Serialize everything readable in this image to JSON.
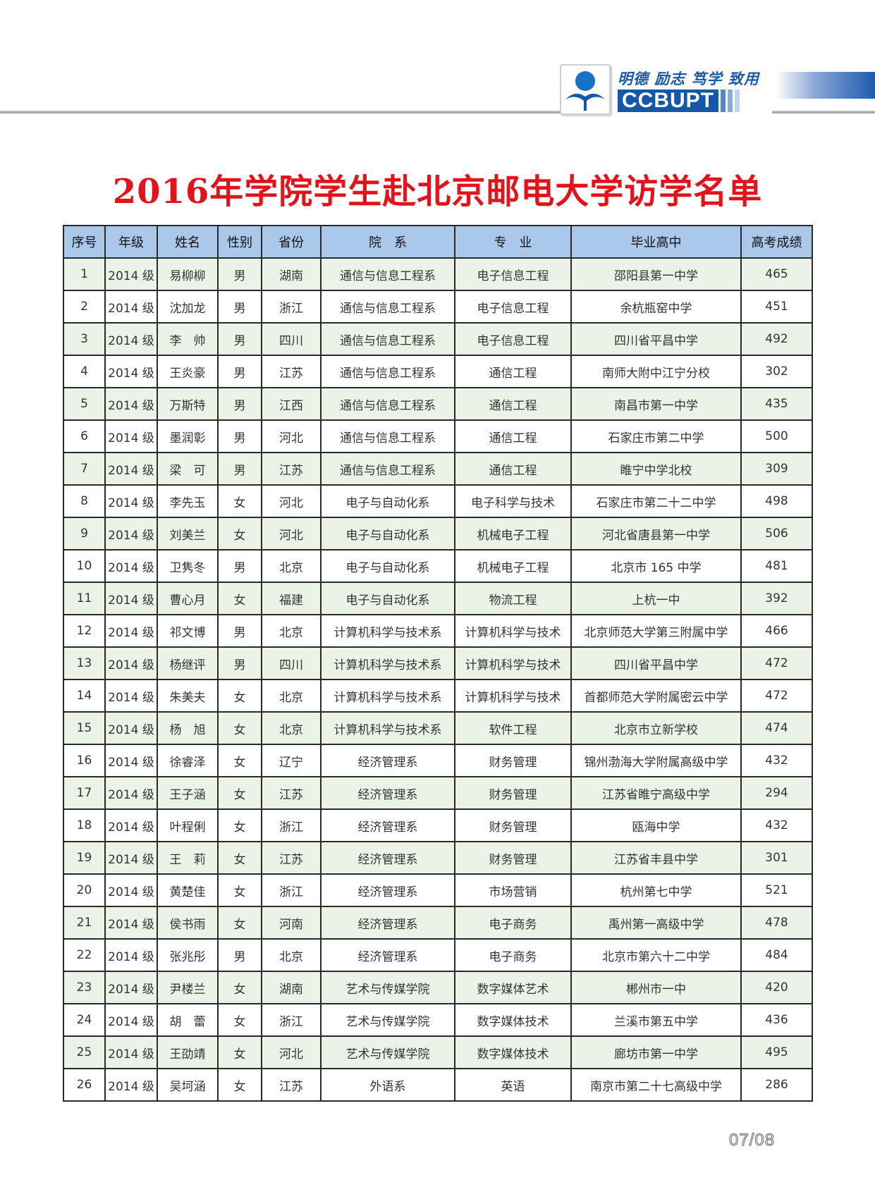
{
  "header": {
    "slogan": "明德 励志 笃学 致用",
    "brand": "CCBUPT",
    "colors": {
      "brand_blue": "#1257a8",
      "title_red": "#e3131b",
      "header_row": "#a9c8ea",
      "stripe_row": "#ebf3e7"
    }
  },
  "title": "2016年学院学生赴北京邮电大学访学名单",
  "table": {
    "columns": [
      "序号",
      "年级",
      "姓名",
      "性别",
      "省份",
      "院　系",
      "专　业",
      "毕业高中",
      "高考成绩"
    ],
    "rows": [
      [
        "1",
        "2014 级",
        "易柳柳",
        "男",
        "湖南",
        "通信与信息工程系",
        "电子信息工程",
        "邵阳县第一中学",
        "465"
      ],
      [
        "2",
        "2014 级",
        "沈加龙",
        "男",
        "浙江",
        "通信与信息工程系",
        "电子信息工程",
        "余杭瓶窑中学",
        "451"
      ],
      [
        "3",
        "2014 级",
        "李　帅",
        "男",
        "四川",
        "通信与信息工程系",
        "电子信息工程",
        "四川省平昌中学",
        "492"
      ],
      [
        "4",
        "2014 级",
        "王炎豪",
        "男",
        "江苏",
        "通信与信息工程系",
        "通信工程",
        "南师大附中江宁分校",
        "302"
      ],
      [
        "5",
        "2014 级",
        "万斯特",
        "男",
        "江西",
        "通信与信息工程系",
        "通信工程",
        "南昌市第一中学",
        "435"
      ],
      [
        "6",
        "2014 级",
        "墨润彰",
        "男",
        "河北",
        "通信与信息工程系",
        "通信工程",
        "石家庄市第二中学",
        "500"
      ],
      [
        "7",
        "2014 级",
        "梁　可",
        "男",
        "江苏",
        "通信与信息工程系",
        "通信工程",
        "睢宁中学北校",
        "309"
      ],
      [
        "8",
        "2014 级",
        "李先玉",
        "女",
        "河北",
        "电子与自动化系",
        "电子科学与技术",
        "石家庄市第二十二中学",
        "498"
      ],
      [
        "9",
        "2014 级",
        "刘美兰",
        "女",
        "河北",
        "电子与自动化系",
        "机械电子工程",
        "河北省唐县第一中学",
        "506"
      ],
      [
        "10",
        "2014 级",
        "卫隽冬",
        "男",
        "北京",
        "电子与自动化系",
        "机械电子工程",
        "北京市 165 中学",
        "481"
      ],
      [
        "11",
        "2014 级",
        "曹心月",
        "女",
        "福建",
        "电子与自动化系",
        "物流工程",
        "上杭一中",
        "392"
      ],
      [
        "12",
        "2014 级",
        "祁文博",
        "男",
        "北京",
        "计算机科学与技术系",
        "计算机科学与技术",
        "北京师范大学第三附属中学",
        "466"
      ],
      [
        "13",
        "2014 级",
        "杨继评",
        "男",
        "四川",
        "计算机科学与技术系",
        "计算机科学与技术",
        "四川省平昌中学",
        "472"
      ],
      [
        "14",
        "2014 级",
        "朱美夫",
        "女",
        "北京",
        "计算机科学与技术系",
        "计算机科学与技术",
        "首都师范大学附属密云中学",
        "472"
      ],
      [
        "15",
        "2014 级",
        "杨　旭",
        "女",
        "北京",
        "计算机科学与技术系",
        "软件工程",
        "北京市立新学校",
        "474"
      ],
      [
        "16",
        "2014 级",
        "徐睿泽",
        "女",
        "辽宁",
        "经济管理系",
        "财务管理",
        "锦州渤海大学附属高级中学",
        "432"
      ],
      [
        "17",
        "2014 级",
        "王子涵",
        "女",
        "江苏",
        "经济管理系",
        "财务管理",
        "江苏省睢宁高级中学",
        "294"
      ],
      [
        "18",
        "2014 级",
        "叶程俐",
        "女",
        "浙江",
        "经济管理系",
        "财务管理",
        "瓯海中学",
        "432"
      ],
      [
        "19",
        "2014 级",
        "王　莉",
        "女",
        "江苏",
        "经济管理系",
        "财务管理",
        "江苏省丰县中学",
        "301"
      ],
      [
        "20",
        "2014 级",
        "黄楚佳",
        "女",
        "浙江",
        "经济管理系",
        "市场营销",
        "杭州第七中学",
        "521"
      ],
      [
        "21",
        "2014 级",
        "侯书雨",
        "女",
        "河南",
        "经济管理系",
        "电子商务",
        "禹州第一高级中学",
        "478"
      ],
      [
        "22",
        "2014 级",
        "张兆彤",
        "男",
        "北京",
        "经济管理系",
        "电子商务",
        "北京市第六十二中学",
        "484"
      ],
      [
        "23",
        "2014 级",
        "尹楼兰",
        "女",
        "湖南",
        "艺术与传媒学院",
        "数字媒体艺术",
        "郴州市一中",
        "420"
      ],
      [
        "24",
        "2014 级",
        "胡　蕾",
        "女",
        "浙江",
        "艺术与传媒学院",
        "数字媒体技术",
        "兰溪市第五中学",
        "436"
      ],
      [
        "25",
        "2014 级",
        "王劭靖",
        "女",
        "河北",
        "艺术与传媒学院",
        "数字媒体技术",
        "廊坊市第一中学",
        "495"
      ],
      [
        "26",
        "2014 级",
        "吴坷涵",
        "女",
        "江苏",
        "外语系",
        "英语",
        "南京市第二十七高级中学",
        "286"
      ]
    ]
  },
  "page_number": "07/08"
}
